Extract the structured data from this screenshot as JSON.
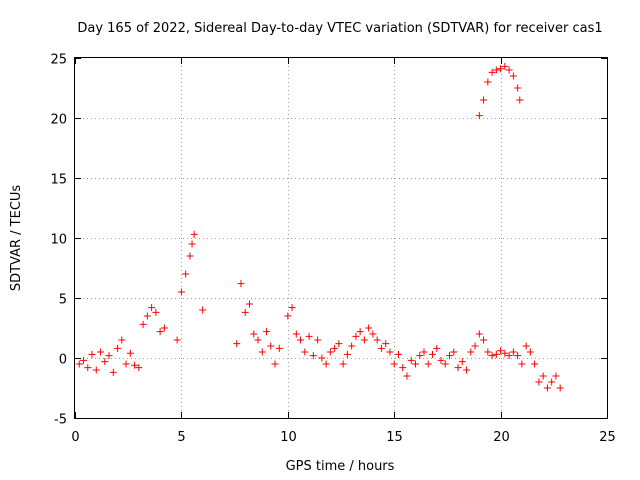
{
  "chart_data": {
    "type": "scatter",
    "title": "Day 165 of 2022, Sidereal Day-to-day VTEC variation (SDTVAR) for receiver cas1",
    "xlabel": "GPS time / hours",
    "ylabel": "SDTVAR / TECUs",
    "xlim": [
      0,
      25
    ],
    "ylim": [
      -5,
      25
    ],
    "xticks": [
      "0",
      "5",
      "10",
      "15",
      "20",
      "25"
    ],
    "yticks": [
      "-5",
      "0",
      "5",
      "10",
      "15",
      "20",
      "25"
    ],
    "grid": true,
    "marker": "+",
    "color": "#ff0000",
    "series": [
      {
        "name": "SDTVAR",
        "x": [
          0.2,
          0.4,
          0.6,
          0.8,
          1.0,
          1.2,
          1.4,
          1.6,
          1.8,
          2.0,
          2.2,
          2.4,
          2.6,
          2.8,
          3.0,
          3.2,
          3.4,
          3.6,
          3.8,
          4.0,
          4.2,
          4.8,
          5.0,
          5.2,
          5.4,
          5.5,
          5.6,
          6.0,
          7.6,
          7.8,
          8.0,
          8.2,
          8.4,
          8.6,
          8.8,
          9.0,
          9.2,
          9.4,
          9.6,
          10.0,
          10.2,
          10.4,
          10.6,
          10.8,
          11.0,
          11.2,
          11.4,
          11.6,
          11.8,
          12.0,
          12.2,
          12.4,
          12.6,
          12.8,
          13.0,
          13.2,
          13.4,
          13.6,
          13.8,
          14.0,
          14.2,
          14.4,
          14.6,
          14.8,
          15.0,
          15.2,
          15.4,
          15.6,
          15.8,
          16.0,
          16.2,
          16.4,
          16.6,
          16.8,
          17.0,
          17.2,
          17.4,
          17.6,
          17.8,
          18.0,
          18.2,
          18.4,
          18.6,
          18.8,
          19.0,
          19.2,
          19.4,
          19.6,
          19.8,
          20.0,
          20.2,
          20.4,
          20.6,
          20.8,
          21.0,
          21.2,
          21.4,
          21.6,
          21.8,
          22.0,
          22.2,
          22.4,
          22.6,
          22.8,
          19.0,
          19.2,
          19.4,
          19.6,
          19.8,
          20.0,
          20.2,
          20.4,
          20.6,
          20.8,
          20.9
        ],
        "y": [
          -0.5,
          -0.2,
          -0.8,
          0.3,
          -1.0,
          0.5,
          -0.3,
          0.2,
          -1.2,
          0.8,
          1.5,
          -0.5,
          0.4,
          -0.6,
          -0.8,
          2.8,
          3.5,
          4.2,
          3.8,
          2.2,
          2.5,
          1.5,
          5.5,
          7.0,
          8.5,
          9.5,
          10.3,
          4.0,
          1.2,
          6.2,
          3.8,
          4.5,
          2.0,
          1.5,
          0.5,
          2.2,
          1.0,
          -0.5,
          0.8,
          3.5,
          4.2,
          2.0,
          1.5,
          0.5,
          1.8,
          0.2,
          1.5,
          0.0,
          -0.5,
          0.5,
          0.8,
          1.2,
          -0.5,
          0.3,
          1.0,
          1.8,
          2.2,
          1.5,
          2.5,
          2.0,
          1.5,
          0.8,
          1.2,
          0.5,
          -0.5,
          0.3,
          -0.8,
          -1.5,
          -0.2,
          -0.5,
          0.2,
          0.5,
          -0.5,
          0.3,
          0.8,
          -0.2,
          -0.5,
          0.2,
          0.5,
          -0.8,
          -0.3,
          -1.0,
          0.5,
          1.0,
          2.0,
          1.5,
          0.5,
          0.2,
          0.3,
          0.6,
          0.4,
          0.2,
          0.5,
          0.2,
          -0.5,
          1.0,
          0.5,
          -0.5,
          -2.0,
          -1.5,
          -2.5,
          -2.0,
          -1.5,
          -2.5,
          20.2,
          21.5,
          23.0,
          23.8,
          24.0,
          24.1,
          24.3,
          24.0,
          23.5,
          22.5,
          21.5
        ]
      }
    ]
  }
}
